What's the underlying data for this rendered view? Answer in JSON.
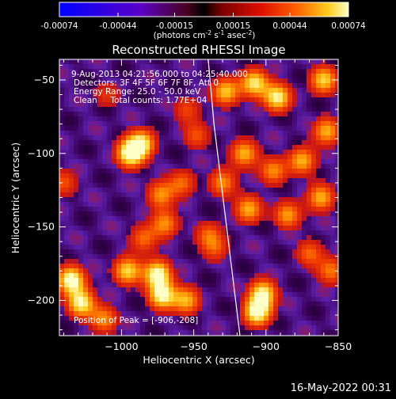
{
  "chart_data": {
    "type": "heatmap",
    "title": "Reconstructed RHESSI Image",
    "xlabel": "Heliocentric X (arcsec)",
    "ylabel": "Heliocentric Y (arcsec)",
    "xlim": [
      -1043,
      -850
    ],
    "ylim": [
      -224,
      -36
    ],
    "xticks": [
      -1000,
      -950,
      -900,
      -850
    ],
    "xtick_labels": [
      "−1000",
      "−950",
      "−900",
      "−850"
    ],
    "yticks": [
      -50,
      -100,
      -150,
      -200
    ],
    "ytick_labels": [
      "−50",
      "−100",
      "−150",
      "−200"
    ],
    "colorbar": {
      "range": [
        -0.00074,
        0.00074
      ],
      "tick_labels": [
        "-0.00074",
        "-0.00044",
        "-0.00015",
        "0.00015",
        "0.00044",
        "0.00074"
      ],
      "unit_main": "(photons cm",
      "unit_e1": "-2",
      "unit_mid1": " s",
      "unit_e2": "-1",
      "unit_mid2": " asec",
      "unit_e3": "-2",
      "unit_close": ")"
    },
    "annotations": [
      "9-Aug-2013 04:21:56.000 to 04:25:40.000",
      "Detectors: 3F 4F 5F 6F 7F 8F, Att 0",
      "Energy Range: 25.0 - 50.0 keV",
      "Clean     Total counts: 1.77E+04"
    ],
    "peak_label": "Position of Peak = [-906,-208]",
    "peak": [
      -906,
      -208
    ],
    "hot_spots": [
      {
        "x": -994,
        "y": -100,
        "v": 1.0
      },
      {
        "x": -986,
        "y": -93,
        "v": 0.8
      },
      {
        "x": -1035,
        "y": -186,
        "v": 1.0
      },
      {
        "x": -1028,
        "y": -202,
        "v": 0.9
      },
      {
        "x": -1012,
        "y": -213,
        "v": 0.6
      },
      {
        "x": -996,
        "y": -180,
        "v": 0.8
      },
      {
        "x": -975,
        "y": -182,
        "v": 0.95
      },
      {
        "x": -972,
        "y": -197,
        "v": 0.9
      },
      {
        "x": -955,
        "y": -200,
        "v": 0.7
      },
      {
        "x": -970,
        "y": -148,
        "v": 0.6
      },
      {
        "x": -985,
        "y": -158,
        "v": 0.5
      },
      {
        "x": -973,
        "y": -128,
        "v": 0.6
      },
      {
        "x": -958,
        "y": -120,
        "v": 0.5
      },
      {
        "x": -928,
        "y": -58,
        "v": 0.75
      },
      {
        "x": -908,
        "y": -52,
        "v": 0.85
      },
      {
        "x": -892,
        "y": -62,
        "v": 0.9
      },
      {
        "x": -860,
        "y": -50,
        "v": 0.8
      },
      {
        "x": -858,
        "y": -85,
        "v": 0.7
      },
      {
        "x": -875,
        "y": -105,
        "v": 0.7
      },
      {
        "x": -895,
        "y": -112,
        "v": 0.6
      },
      {
        "x": -915,
        "y": -100,
        "v": 0.7
      },
      {
        "x": -930,
        "y": -120,
        "v": 0.6
      },
      {
        "x": -912,
        "y": -138,
        "v": 0.7
      },
      {
        "x": -885,
        "y": -142,
        "v": 0.65
      },
      {
        "x": -862,
        "y": -130,
        "v": 0.7
      },
      {
        "x": -870,
        "y": -168,
        "v": 0.5
      },
      {
        "x": -855,
        "y": -180,
        "v": 0.55
      },
      {
        "x": -906,
        "y": -208,
        "v": 1.0
      },
      {
        "x": -902,
        "y": -195,
        "v": 0.85
      },
      {
        "x": -935,
        "y": -165,
        "v": 0.4
      },
      {
        "x": -1040,
        "y": -120,
        "v": 0.45
      },
      {
        "x": -1010,
        "y": -60,
        "v": 0.35
      },
      {
        "x": -955,
        "y": -70,
        "v": 0.4
      },
      {
        "x": -948,
        "y": -88,
        "v": 0.45
      },
      {
        "x": -940,
        "y": -155,
        "v": 0.45
      }
    ]
  },
  "footer": {
    "timestamp": "16-May-2022 00:31"
  }
}
